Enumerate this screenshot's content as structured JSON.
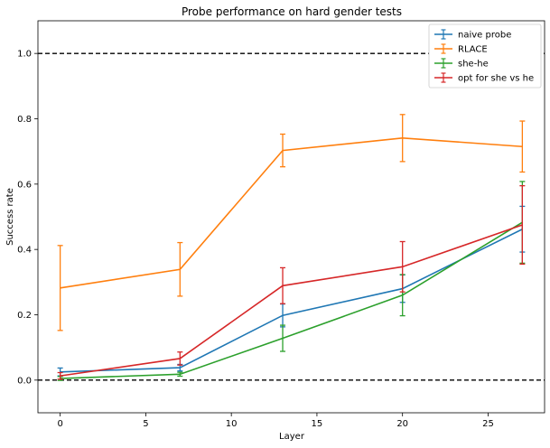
{
  "chart_data": {
    "type": "line",
    "title": "Probe performance on hard gender tests",
    "xlabel": "Layer",
    "ylabel": "Success rate",
    "xlim": [
      -1.3,
      28.3
    ],
    "ylim": [
      -0.1,
      1.1
    ],
    "xticks": [
      0,
      5,
      10,
      15,
      20,
      25
    ],
    "yticks": [
      0.0,
      0.2,
      0.4,
      0.6,
      0.8,
      1.0
    ],
    "xtick_labels": [
      "0",
      "5",
      "10",
      "15",
      "20",
      "25"
    ],
    "ytick_labels": [
      "0.0",
      "0.2",
      "0.4",
      "0.6",
      "0.8",
      "1.0"
    ],
    "reference_lines": [
      1.0,
      0.0
    ],
    "grid": false,
    "legend_position": "top-right",
    "x": [
      0,
      7,
      13,
      20,
      27
    ],
    "series": [
      {
        "name": "naive probe",
        "color": "#1f77b4",
        "values": [
          0.025,
          0.038,
          0.198,
          0.28,
          0.462
        ],
        "err": [
          0.012,
          0.01,
          0.035,
          0.042,
          0.07
        ]
      },
      {
        "name": "RLACE",
        "color": "#ff7f0e",
        "values": [
          0.282,
          0.339,
          0.703,
          0.741,
          0.715
        ],
        "err": [
          0.13,
          0.082,
          0.05,
          0.072,
          0.078
        ]
      },
      {
        "name": "she-he",
        "color": "#2ca02c",
        "values": [
          0.005,
          0.018,
          0.128,
          0.26,
          0.483
        ],
        "err": [
          0.006,
          0.006,
          0.04,
          0.063,
          0.125
        ]
      },
      {
        "name": "opt for she vs he",
        "color": "#d62728",
        "values": [
          0.013,
          0.066,
          0.289,
          0.347,
          0.475
        ],
        "err": [
          0.01,
          0.02,
          0.055,
          0.077,
          0.12
        ]
      }
    ]
  }
}
